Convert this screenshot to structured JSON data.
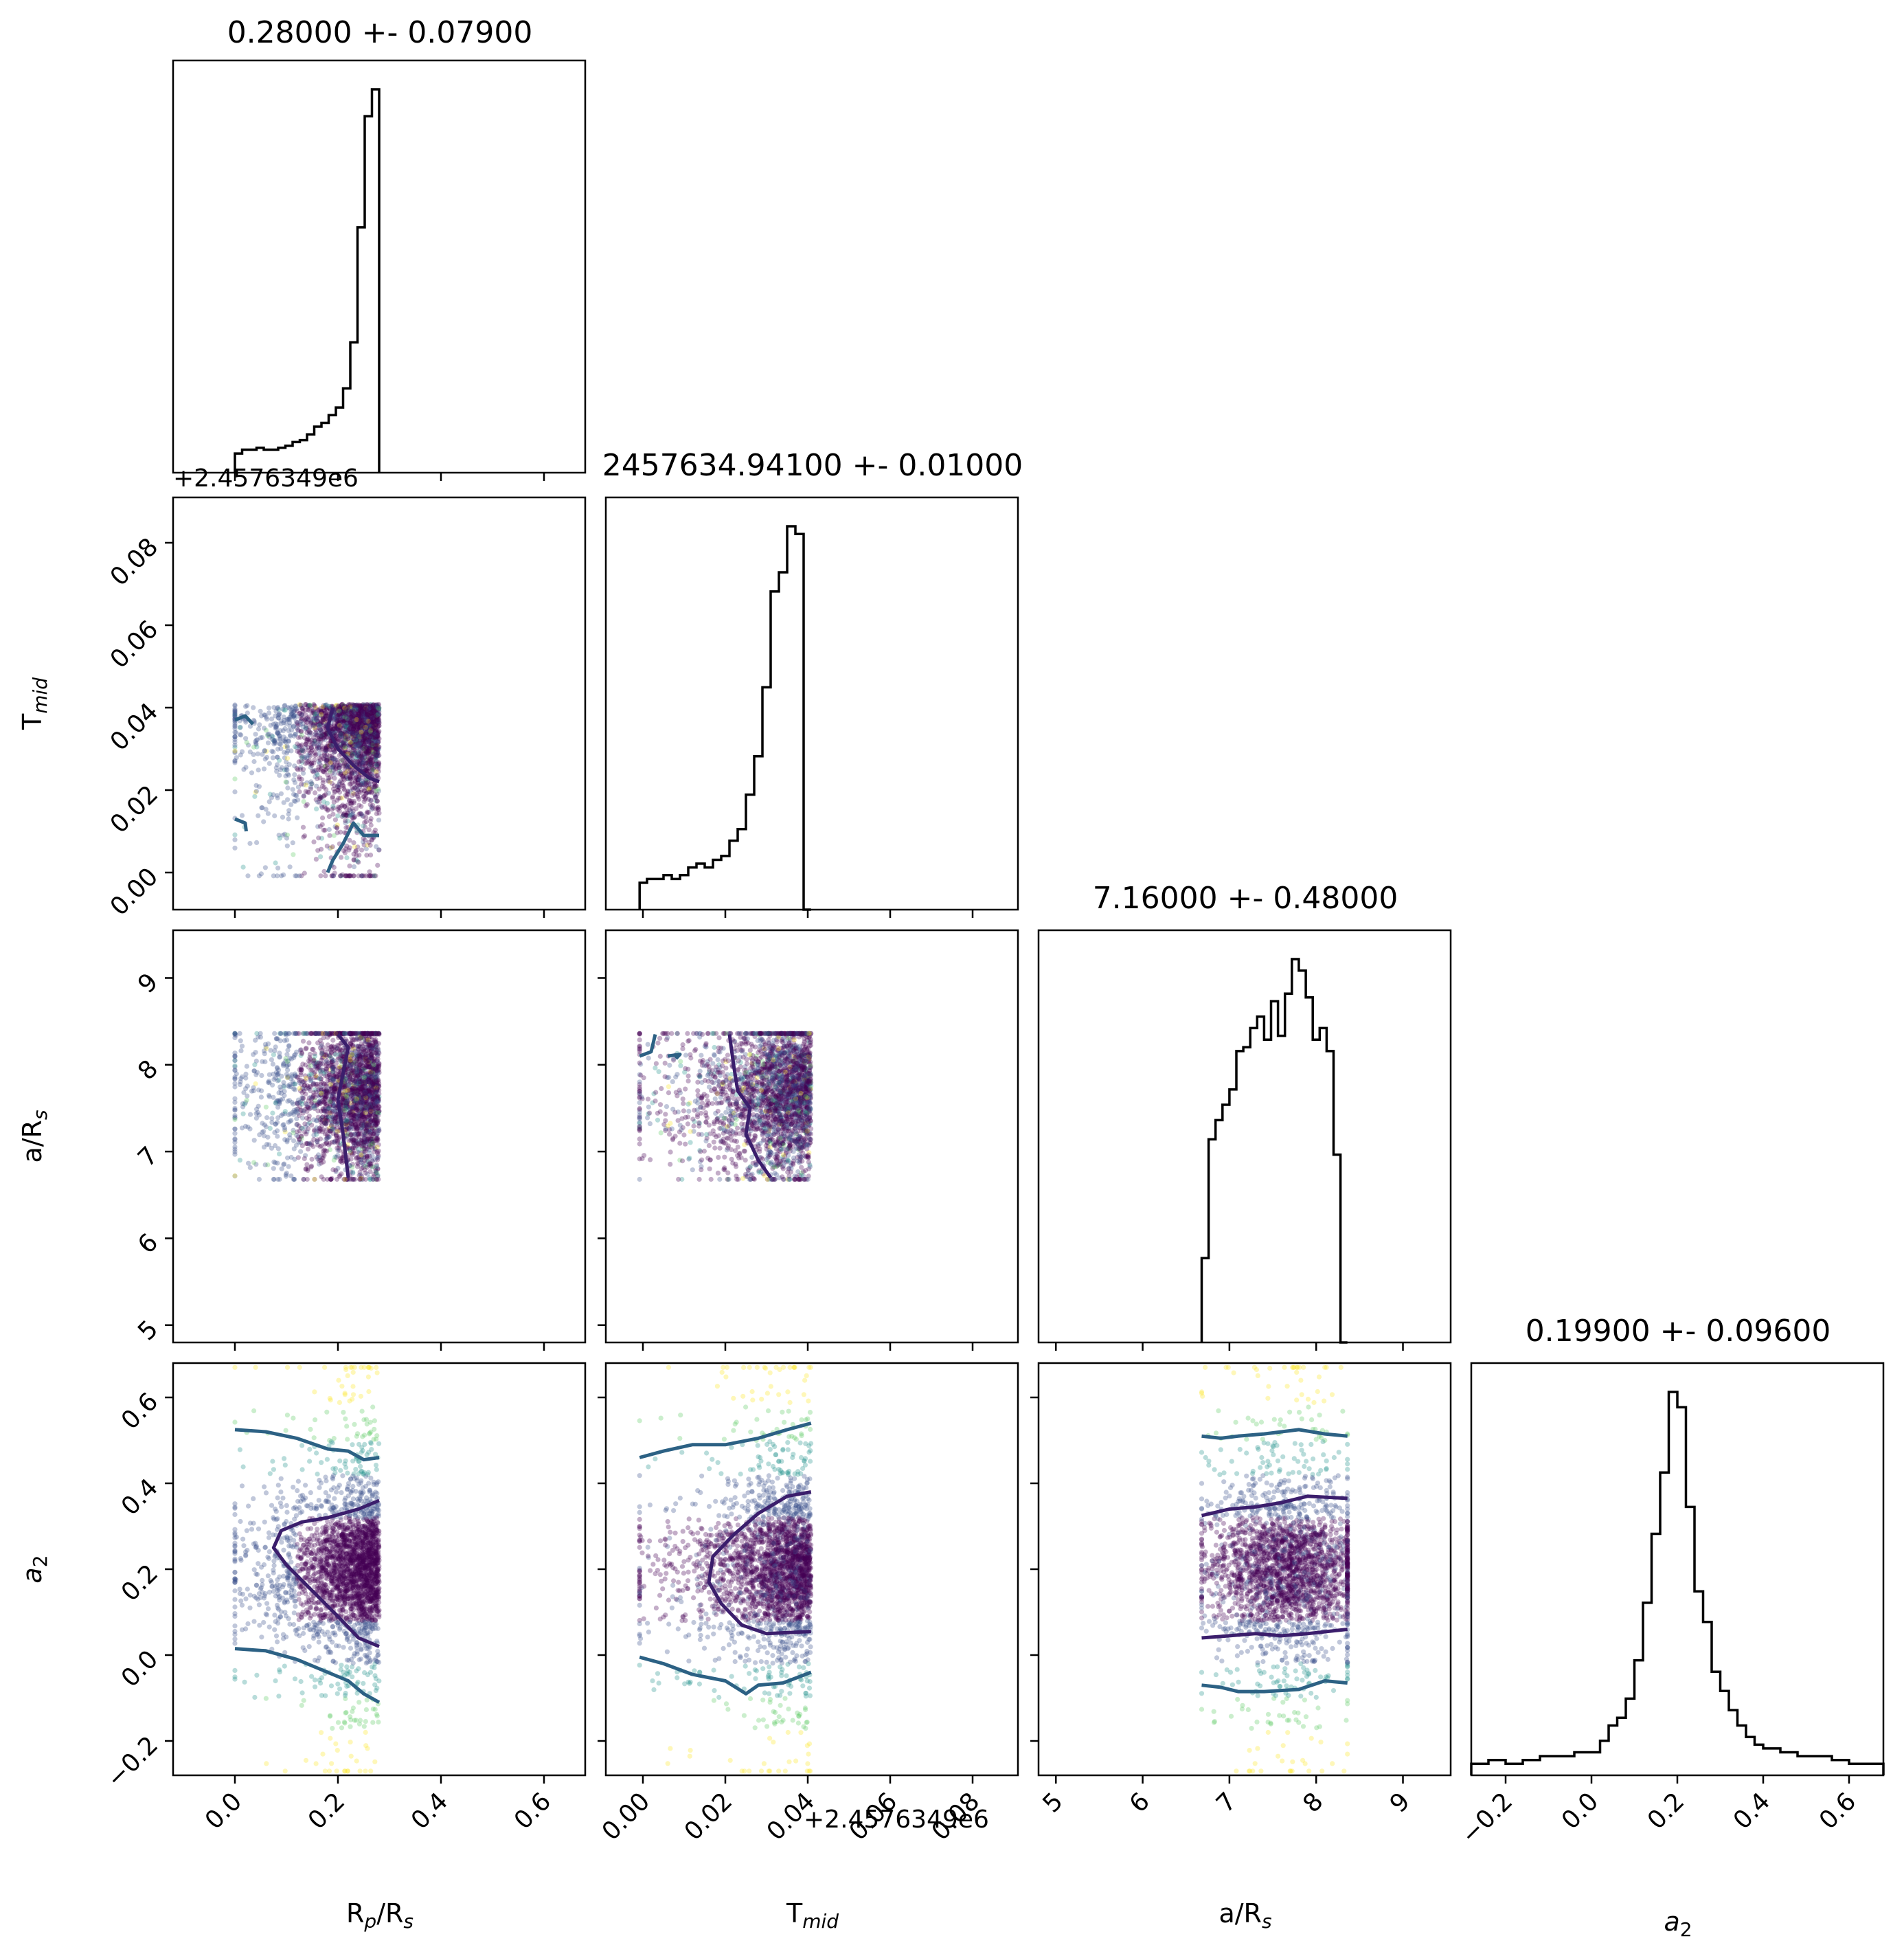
{
  "chart_data": {
    "type": "corner",
    "parameters": [
      "R_p/R_s",
      "T_mid",
      "a/R_s",
      "a_2"
    ],
    "axis_labels": {
      "rp": {
        "main": "R",
        "sub": "p",
        "rest": "/R",
        "sub2": "s"
      },
      "tmid": {
        "main": "T",
        "sub": "mid"
      },
      "ars": {
        "main": "a/R",
        "sub": "s"
      },
      "a2": {
        "main": "a",
        "sub": "2"
      }
    },
    "titles": [
      "0.28000 +- 0.07900",
      "2457634.94100 +- 0.01000",
      "7.16000 +- 0.48000",
      "0.19900 +- 0.09600"
    ],
    "offset_text": "+2.4576349e6",
    "ranges": {
      "rp": [
        -0.12,
        0.68
      ],
      "tmid": [
        -0.009,
        0.091
      ],
      "ars": [
        4.8,
        9.55
      ],
      "a2": [
        -0.28,
        0.68
      ]
    },
    "ticks": {
      "rp": [
        "0.0",
        "0.2",
        "0.4",
        "0.6"
      ],
      "tmid": [
        "0.00",
        "0.02",
        "0.04",
        "0.06",
        "0.08"
      ],
      "ars": [
        "5",
        "6",
        "7",
        "8",
        "9"
      ],
      "a2": [
        "−0.2",
        "0.0",
        "0.2",
        "0.4",
        "0.6"
      ]
    },
    "tick_values": {
      "rp": [
        0,
        0.2,
        0.4,
        0.6
      ],
      "tmid": [
        0,
        0.02,
        0.04,
        0.06,
        0.08
      ],
      "ars": [
        5,
        6,
        7,
        8,
        9
      ],
      "a2": [
        -0.2,
        0,
        0.2,
        0.4,
        0.6
      ]
    },
    "histograms": {
      "rp": {
        "edges": [
          0.0,
          0.014,
          0.028,
          0.042,
          0.056,
          0.07,
          0.084,
          0.098,
          0.112,
          0.126,
          0.14,
          0.154,
          0.168,
          0.182,
          0.196,
          0.21,
          0.224,
          0.238,
          0.252,
          0.266,
          0.28
        ],
        "counts": [
          0.05,
          0.06,
          0.06,
          0.065,
          0.06,
          0.06,
          0.065,
          0.07,
          0.08,
          0.085,
          0.1,
          0.12,
          0.13,
          0.15,
          0.17,
          0.22,
          0.34,
          0.64,
          0.93,
          1.0
        ]
      },
      "tmid": {
        "edges": [
          -0.0008,
          0.001,
          0.003,
          0.005,
          0.007,
          0.009,
          0.011,
          0.013,
          0.015,
          0.017,
          0.019,
          0.021,
          0.023,
          0.025,
          0.027,
          0.029,
          0.031,
          0.033,
          0.035,
          0.037,
          0.039,
          0.0408
        ],
        "counts": [
          0.07,
          0.08,
          0.08,
          0.09,
          0.08,
          0.09,
          0.11,
          0.12,
          0.11,
          0.13,
          0.14,
          0.18,
          0.21,
          0.3,
          0.4,
          0.58,
          0.83,
          0.88,
          1.0,
          0.98,
          0.0
        ]
      },
      "ars": {
        "edges": [
          6.68,
          6.76,
          6.84,
          6.92,
          7.0,
          7.08,
          7.16,
          7.24,
          7.32,
          7.4,
          7.48,
          7.56,
          7.64,
          7.72,
          7.8,
          7.88,
          7.96,
          8.04,
          8.12,
          8.2,
          8.28,
          8.36
        ],
        "counts": [
          0.22,
          0.53,
          0.58,
          0.62,
          0.66,
          0.76,
          0.77,
          0.82,
          0.85,
          0.79,
          0.89,
          0.8,
          0.91,
          1.0,
          0.97,
          0.9,
          0.79,
          0.82,
          0.76,
          0.49,
          0.0
        ]
      },
      "a2": {
        "edges": [
          -0.28,
          -0.24,
          -0.2,
          -0.16,
          -0.12,
          -0.08,
          -0.04,
          0.0,
          0.02,
          0.04,
          0.06,
          0.08,
          0.1,
          0.12,
          0.14,
          0.16,
          0.18,
          0.2,
          0.22,
          0.24,
          0.26,
          0.28,
          0.3,
          0.32,
          0.34,
          0.36,
          0.38,
          0.4,
          0.44,
          0.48,
          0.52,
          0.56,
          0.6,
          0.64,
          0.68
        ],
        "counts": [
          0.03,
          0.04,
          0.03,
          0.04,
          0.05,
          0.05,
          0.06,
          0.06,
          0.09,
          0.13,
          0.15,
          0.2,
          0.3,
          0.45,
          0.63,
          0.79,
          1.0,
          0.96,
          0.7,
          0.48,
          0.4,
          0.27,
          0.22,
          0.17,
          0.13,
          0.1,
          0.08,
          0.07,
          0.06,
          0.05,
          0.05,
          0.04,
          0.03,
          0.03
        ]
      }
    },
    "contours": {
      "tmid_vs_rp": [
        {
          "level": "outer",
          "points": [
            [
              0.0,
              0.037
            ],
            [
              0.02,
              0.038
            ],
            [
              0.035,
              0.036
            ]
          ]
        },
        {
          "level": "outer",
          "points": [
            [
              0.0,
              0.013
            ],
            [
              0.02,
              0.012
            ],
            [
              0.022,
              0.01
            ]
          ]
        },
        {
          "level": "outer",
          "points": [
            [
              0.28,
              0.009
            ],
            [
              0.25,
              0.009
            ],
            [
              0.23,
              0.012
            ],
            [
              0.21,
              0.007
            ],
            [
              0.19,
              0.003
            ],
            [
              0.18,
              0.0
            ]
          ]
        },
        {
          "level": "inner",
          "points": [
            [
              0.19,
              0.04
            ],
            [
              0.18,
              0.035
            ],
            [
              0.2,
              0.03
            ],
            [
              0.23,
              0.026
            ],
            [
              0.26,
              0.023
            ],
            [
              0.28,
              0.022
            ]
          ]
        }
      ],
      "ars_vs_rp": [
        {
          "level": "inner",
          "points": [
            [
              0.2,
              8.35
            ],
            [
              0.22,
              8.2
            ],
            [
              0.21,
              7.9
            ],
            [
              0.2,
              7.6
            ],
            [
              0.21,
              7.2
            ],
            [
              0.22,
              6.7
            ]
          ]
        }
      ],
      "ars_vs_tmid": [
        {
          "level": "outer",
          "points": [
            [
              -0.0008,
              8.1
            ],
            [
              0.002,
              8.15
            ],
            [
              0.003,
              8.35
            ]
          ]
        },
        {
          "level": "outer",
          "points": [
            [
              0.008,
              8.07
            ],
            [
              0.009,
              8.12
            ],
            [
              0.006,
              8.1
            ]
          ]
        },
        {
          "level": "inner",
          "points": [
            [
              0.021,
              8.35
            ],
            [
              0.022,
              8.0
            ],
            [
              0.023,
              7.7
            ],
            [
              0.026,
              7.5
            ],
            [
              0.025,
              7.2
            ],
            [
              0.028,
              6.9
            ],
            [
              0.031,
              6.7
            ]
          ]
        }
      ],
      "a2_vs_rp": [
        {
          "level": "outer",
          "points": [
            [
              0.0,
              0.525
            ],
            [
              0.06,
              0.52
            ],
            [
              0.12,
              0.505
            ],
            [
              0.18,
              0.48
            ],
            [
              0.22,
              0.475
            ],
            [
              0.25,
              0.455
            ],
            [
              0.28,
              0.46
            ]
          ]
        },
        {
          "level": "outer",
          "points": [
            [
              0.0,
              0.015
            ],
            [
              0.06,
              0.01
            ],
            [
              0.12,
              -0.01
            ],
            [
              0.18,
              -0.04
            ],
            [
              0.22,
              -0.06
            ],
            [
              0.25,
              -0.09
            ],
            [
              0.28,
              -0.11
            ]
          ]
        },
        {
          "level": "inner",
          "points": [
            [
              0.28,
              0.36
            ],
            [
              0.24,
              0.34
            ],
            [
              0.18,
              0.32
            ],
            [
              0.13,
              0.31
            ],
            [
              0.09,
              0.29
            ],
            [
              0.075,
              0.25
            ],
            [
              0.1,
              0.21
            ],
            [
              0.15,
              0.15
            ],
            [
              0.2,
              0.09
            ],
            [
              0.24,
              0.04
            ],
            [
              0.28,
              0.02
            ]
          ]
        }
      ],
      "a2_vs_tmid": [
        {
          "level": "outer",
          "points": [
            [
              -0.0008,
              0.46
            ],
            [
              0.005,
              0.475
            ],
            [
              0.012,
              0.49
            ],
            [
              0.02,
              0.49
            ],
            [
              0.028,
              0.505
            ],
            [
              0.035,
              0.525
            ],
            [
              0.0408,
              0.54
            ]
          ]
        },
        {
          "level": "outer",
          "points": [
            [
              -0.0008,
              -0.005
            ],
            [
              0.005,
              -0.02
            ],
            [
              0.012,
              -0.045
            ],
            [
              0.02,
              -0.06
            ],
            [
              0.025,
              -0.09
            ],
            [
              0.028,
              -0.07
            ],
            [
              0.034,
              -0.065
            ],
            [
              0.0408,
              -0.04
            ]
          ]
        },
        {
          "level": "inner",
          "points": [
            [
              0.0408,
              0.38
            ],
            [
              0.035,
              0.37
            ],
            [
              0.028,
              0.33
            ],
            [
              0.022,
              0.28
            ],
            [
              0.017,
              0.23
            ],
            [
              0.016,
              0.17
            ],
            [
              0.019,
              0.12
            ],
            [
              0.024,
              0.07
            ],
            [
              0.03,
              0.05
            ],
            [
              0.0408,
              0.055
            ]
          ]
        }
      ],
      "a2_vs_ars": [
        {
          "level": "outer",
          "points": [
            [
              6.68,
              0.51
            ],
            [
              6.9,
              0.505
            ],
            [
              7.1,
              0.51
            ],
            [
              7.4,
              0.515
            ],
            [
              7.8,
              0.525
            ],
            [
              8.1,
              0.515
            ],
            [
              8.36,
              0.51
            ]
          ]
        },
        {
          "level": "outer",
          "points": [
            [
              6.68,
              -0.07
            ],
            [
              6.9,
              -0.075
            ],
            [
              7.1,
              -0.085
            ],
            [
              7.4,
              -0.085
            ],
            [
              7.8,
              -0.08
            ],
            [
              8.1,
              -0.06
            ],
            [
              8.36,
              -0.065
            ]
          ]
        },
        {
          "level": "inner",
          "points": [
            [
              6.68,
              0.325
            ],
            [
              7.0,
              0.34
            ],
            [
              7.3,
              0.345
            ],
            [
              7.6,
              0.355
            ],
            [
              7.9,
              0.37
            ],
            [
              8.36,
              0.365
            ]
          ]
        },
        {
          "level": "inner",
          "points": [
            [
              6.68,
              0.04
            ],
            [
              7.0,
              0.045
            ],
            [
              7.3,
              0.05
            ],
            [
              7.6,
              0.045
            ],
            [
              7.9,
              0.05
            ],
            [
              8.36,
              0.06
            ]
          ]
        }
      ]
    },
    "scatter_seed": 12345,
    "colors": {
      "hist": "#000000",
      "contour_outer": "#2c6184",
      "contour_inner": "#3b1e6c",
      "points_dense": "#440154",
      "points_mid": "#3b528b",
      "points_outer": "#21918c",
      "points_far": "#5ec962",
      "points_edge": "#fde725"
    },
    "grid": false,
    "legend": "none"
  }
}
